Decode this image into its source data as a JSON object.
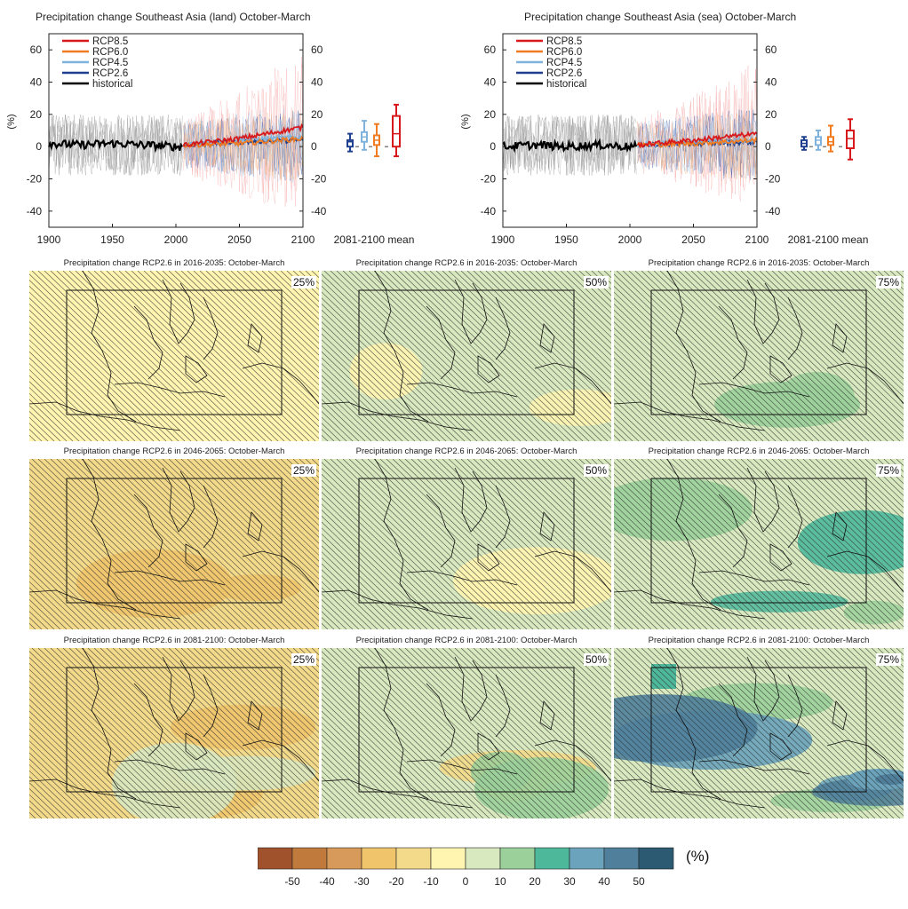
{
  "timeseries": [
    {
      "title": "Precipitation change Southeast Asia (land) October-March",
      "ylabel": "(%)",
      "mean_label": "2081-2100 mean",
      "x_ticks": [
        "1900",
        "1950",
        "2000",
        "2050",
        "2100"
      ],
      "y_ticks": [
        "60",
        "40",
        "20",
        "0",
        "-20",
        "-40"
      ]
    },
    {
      "title": "Precipitation change Southeast Asia (sea) October-March",
      "ylabel": "(%)",
      "mean_label": "2081-2100 mean",
      "x_ticks": [
        "1900",
        "1950",
        "2000",
        "2050",
        "2100"
      ],
      "y_ticks": [
        "60",
        "40",
        "20",
        "0",
        "-20",
        "-40"
      ]
    }
  ],
  "legend": [
    {
      "name": "RCP8.5",
      "color": "#d7191c"
    },
    {
      "name": "RCP6.0",
      "color": "#f07b21"
    },
    {
      "name": "RCP4.5",
      "color": "#7fb3de"
    },
    {
      "name": "RCP2.6",
      "color": "#1f3f8f"
    },
    {
      "name": "historical",
      "color": "#000000"
    }
  ],
  "maps": [
    {
      "title": "Precipitation change RCP2.6 in 2016-2035: October-March",
      "pct": "25%"
    },
    {
      "title": "Precipitation change RCP2.6 in 2016-2035: October-March",
      "pct": "50%"
    },
    {
      "title": "Precipitation change RCP2.6 in 2016-2035: October-March",
      "pct": "75%"
    },
    {
      "title": "Precipitation change RCP2.6 in 2046-2065: October-March",
      "pct": "25%"
    },
    {
      "title": "Precipitation change RCP2.6 in 2046-2065: October-March",
      "pct": "50%"
    },
    {
      "title": "Precipitation change RCP2.6 in 2046-2065: October-March",
      "pct": "75%"
    },
    {
      "title": "Precipitation change RCP2.6 in 2081-2100: October-March",
      "pct": "25%"
    },
    {
      "title": "Precipitation change RCP2.6 in 2081-2100: October-March",
      "pct": "50%"
    },
    {
      "title": "Precipitation change RCP2.6 in 2081-2100: October-March",
      "pct": "75%"
    }
  ],
  "colorbar": {
    "unit": "(%)",
    "labels": [
      "-50",
      "-40",
      "-30",
      "-20",
      "-10",
      "0",
      "10",
      "20",
      "30",
      "40",
      "50"
    ],
    "colors": [
      "#a0522d",
      "#c07a3c",
      "#d89a5a",
      "#efc46a",
      "#f3da8a",
      "#fff4b0",
      "#d8e8bf",
      "#9bd09a",
      "#4db89a",
      "#6aa3bb",
      "#4f7f9b",
      "#2c5a72"
    ]
  },
  "chart_data": [
    {
      "type": "line",
      "title": "Precipitation change Southeast Asia (land) October-March",
      "ylabel": "(%)",
      "xlim": [
        1900,
        2100
      ],
      "ylim": [
        -50,
        70
      ],
      "series": [
        {
          "name": "historical",
          "x": [
            1900,
            1925,
            1950,
            1975,
            2000,
            2005
          ],
          "values": [
            2,
            1,
            2,
            1,
            0,
            0
          ]
        },
        {
          "name": "RCP2.6",
          "x": [
            2006,
            2050,
            2100
          ],
          "values": [
            1,
            3,
            4
          ]
        },
        {
          "name": "RCP4.5",
          "x": [
            2006,
            2050,
            2100
          ],
          "values": [
            1,
            4,
            6
          ]
        },
        {
          "name": "RCP6.0",
          "x": [
            2006,
            2050,
            2100
          ],
          "values": [
            1,
            2,
            5
          ]
        },
        {
          "name": "RCP8.5",
          "x": [
            2006,
            2050,
            2100
          ],
          "values": [
            1,
            5,
            12
          ]
        }
      ],
      "boxplots_2081_2100": [
        {
          "name": "RCP2.6",
          "color": "#1f3f8f",
          "min": -3,
          "q1": 0,
          "median": 3,
          "q3": 4,
          "max": 8
        },
        {
          "name": "RCP4.5",
          "color": "#7fb3de",
          "min": -2,
          "q1": 3,
          "median": 6,
          "q3": 9,
          "max": 16
        },
        {
          "name": "RCP6.0",
          "color": "#f07b21",
          "min": -6,
          "q1": 1,
          "median": 4,
          "q3": 7,
          "max": 14
        },
        {
          "name": "RCP8.5",
          "color": "#d7191c",
          "min": -6,
          "q1": 0,
          "median": 8,
          "q3": 19,
          "max": 26
        }
      ]
    },
    {
      "type": "line",
      "title": "Precipitation change Southeast Asia (sea) October-March",
      "ylabel": "(%)",
      "xlim": [
        1900,
        2100
      ],
      "ylim": [
        -50,
        70
      ],
      "series": [
        {
          "name": "historical",
          "x": [
            1900,
            1925,
            1950,
            1975,
            2000,
            2005
          ],
          "values": [
            0,
            1,
            0,
            1,
            0,
            0
          ]
        },
        {
          "name": "RCP2.6",
          "x": [
            2006,
            2050,
            2100
          ],
          "values": [
            1,
            2,
            3
          ]
        },
        {
          "name": "RCP4.5",
          "x": [
            2006,
            2050,
            2100
          ],
          "values": [
            1,
            3,
            4
          ]
        },
        {
          "name": "RCP6.0",
          "x": [
            2006,
            2050,
            2100
          ],
          "values": [
            1,
            2,
            4
          ]
        },
        {
          "name": "RCP8.5",
          "x": [
            2006,
            2050,
            2100
          ],
          "values": [
            1,
            4,
            8
          ]
        }
      ],
      "boxplots_2081_2100": [
        {
          "name": "RCP2.6",
          "color": "#1f3f8f",
          "min": -2,
          "q1": 0,
          "median": 2,
          "q3": 4,
          "max": 6
        },
        {
          "name": "RCP4.5",
          "color": "#7fb3de",
          "min": -2,
          "q1": 1,
          "median": 4,
          "q3": 6,
          "max": 10
        },
        {
          "name": "RCP6.0",
          "color": "#f07b21",
          "min": -3,
          "q1": 1,
          "median": 3,
          "q3": 6,
          "max": 13
        },
        {
          "name": "RCP8.5",
          "color": "#d7191c",
          "min": -8,
          "q1": -1,
          "median": 5,
          "q3": 10,
          "max": 17
        }
      ]
    }
  ]
}
